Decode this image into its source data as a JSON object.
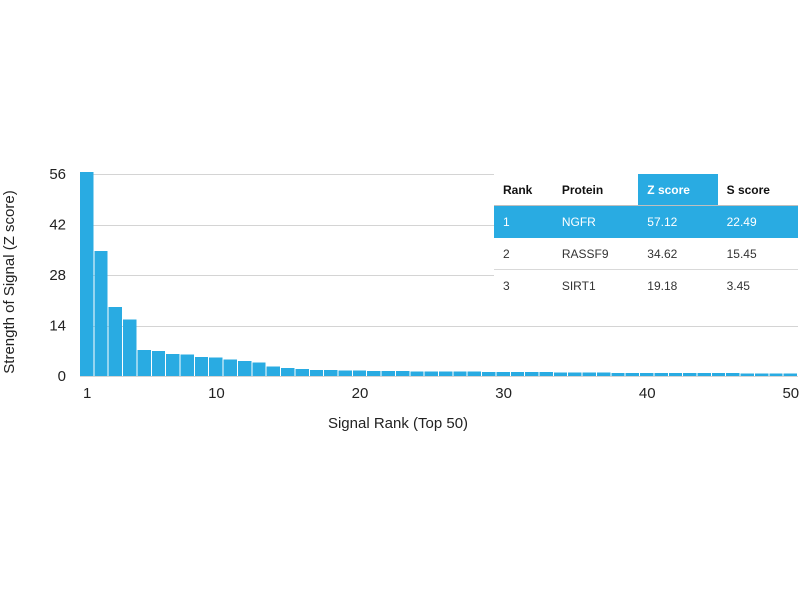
{
  "chart_data": {
    "type": "bar",
    "xlabel": "Signal Rank (Top 50)",
    "ylabel": "Strength of Signal (Z score)",
    "ylim": [
      0,
      56
    ],
    "yticks": [
      0,
      14,
      28,
      42,
      56
    ],
    "xticks": [
      1,
      10,
      20,
      30,
      40,
      50
    ],
    "grid": true,
    "bar_color": "#29abe2",
    "x": [
      1,
      2,
      3,
      4,
      5,
      6,
      7,
      8,
      9,
      10,
      11,
      12,
      13,
      14,
      15,
      16,
      17,
      18,
      19,
      20,
      21,
      22,
      23,
      24,
      25,
      26,
      27,
      28,
      29,
      30,
      31,
      32,
      33,
      34,
      35,
      36,
      37,
      38,
      39,
      40,
      41,
      42,
      43,
      44,
      45,
      46,
      47,
      48,
      49,
      50
    ],
    "values": [
      57.12,
      34.62,
      19.18,
      15.6,
      7.2,
      6.9,
      6.1,
      5.9,
      5.2,
      5.1,
      4.6,
      4.2,
      3.8,
      2.6,
      2.2,
      1.9,
      1.7,
      1.6,
      1.55,
      1.5,
      1.45,
      1.4,
      1.35,
      1.3,
      1.3,
      1.25,
      1.2,
      1.2,
      1.15,
      1.1,
      1.1,
      1.05,
      1.05,
      1.0,
      1.0,
      0.95,
      0.95,
      0.9,
      0.9,
      0.9,
      0.85,
      0.85,
      0.85,
      0.8,
      0.8,
      0.8,
      0.75,
      0.75,
      0.75,
      0.7
    ]
  },
  "table": {
    "headers": [
      "Rank",
      "Protein",
      "Z score",
      "S score"
    ],
    "rows": [
      [
        "1",
        "NGFR",
        "57.12",
        "22.49"
      ],
      [
        "2",
        "RASSF9",
        "34.62",
        "15.45"
      ],
      [
        "3",
        "SIRT1",
        "19.18",
        "3.45"
      ]
    ]
  },
  "colors": {
    "accent": "#29abe2"
  }
}
